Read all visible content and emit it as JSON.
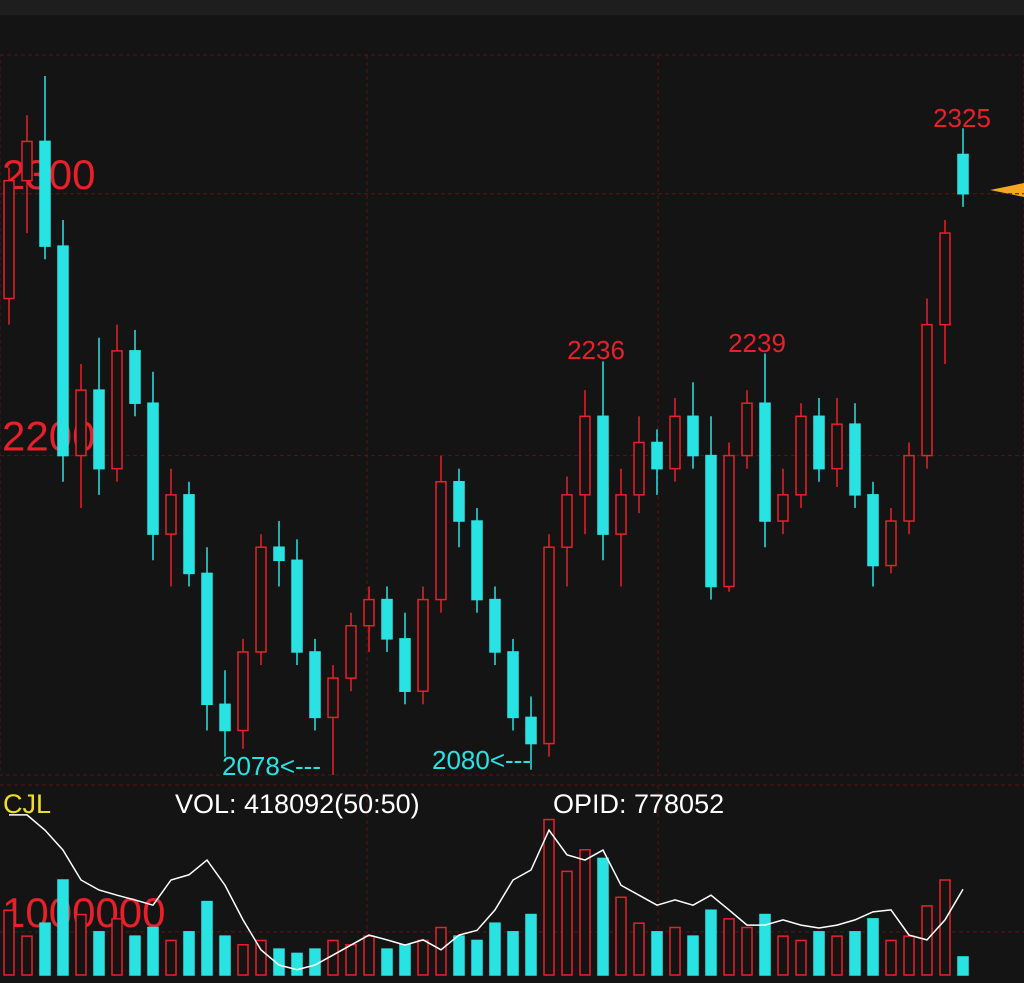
{
  "chart_data": {
    "type": "candlestick",
    "up_color": "#e8202a",
    "down_color": "#29e3e3",
    "ylim": [
      2078,
      2353
    ],
    "yticks": [
      2200,
      2300
    ],
    "grid": true,
    "open": [
      2260,
      2305,
      2320,
      2280,
      2200,
      2225,
      2195,
      2240,
      2220,
      2170,
      2185,
      2155,
      2105,
      2095,
      2125,
      2165,
      2160,
      2125,
      2100,
      2115,
      2135,
      2145,
      2130,
      2110,
      2145,
      2190,
      2175,
      2145,
      2125,
      2100,
      2090,
      2165,
      2185,
      2215,
      2170,
      2185,
      2205,
      2195,
      2215,
      2200,
      2150,
      2200,
      2220,
      2175,
      2185,
      2215,
      2195,
      2212,
      2185,
      2158,
      2175,
      2200,
      2250,
      2315
    ],
    "high": [
      2310,
      2330,
      2345,
      2290,
      2235,
      2245,
      2250,
      2248,
      2232,
      2195,
      2190,
      2165,
      2118,
      2130,
      2170,
      2175,
      2168,
      2130,
      2120,
      2140,
      2150,
      2150,
      2140,
      2150,
      2200,
      2195,
      2180,
      2150,
      2130,
      2108,
      2170,
      2192,
      2225,
      2236,
      2195,
      2215,
      2210,
      2222,
      2228,
      2215,
      2205,
      2225,
      2239,
      2195,
      2220,
      2222,
      2222,
      2220,
      2190,
      2180,
      2205,
      2260,
      2290,
      2325
    ],
    "low": [
      2250,
      2285,
      2275,
      2190,
      2180,
      2185,
      2190,
      2215,
      2160,
      2150,
      2150,
      2095,
      2085,
      2088,
      2120,
      2150,
      2120,
      2095,
      2078,
      2110,
      2125,
      2125,
      2105,
      2105,
      2140,
      2165,
      2140,
      2120,
      2095,
      2080,
      2085,
      2150,
      2170,
      2160,
      2150,
      2178,
      2185,
      2190,
      2195,
      2145,
      2148,
      2195,
      2165,
      2170,
      2180,
      2190,
      2188,
      2180,
      2150,
      2155,
      2170,
      2195,
      2235,
      2295
    ],
    "close": [
      2305,
      2320,
      2280,
      2200,
      2225,
      2195,
      2240,
      2220,
      2170,
      2185,
      2155,
      2105,
      2095,
      2125,
      2165,
      2160,
      2125,
      2100,
      2115,
      2135,
      2145,
      2130,
      2110,
      2145,
      2190,
      2175,
      2145,
      2125,
      2100,
      2090,
      2165,
      2185,
      2215,
      2170,
      2185,
      2205,
      2195,
      2215,
      2200,
      2150,
      2200,
      2220,
      2175,
      2185,
      2215,
      2195,
      2212,
      2185,
      2158,
      2175,
      2200,
      2250,
      2285,
      2300
    ],
    "annotations": [
      "2325",
      "2236",
      "2239",
      "2078<---",
      "2080<---"
    ],
    "volume": {
      "label": "CJL",
      "ylim": [
        0,
        4400000
      ],
      "yticks": [
        1000000
      ],
      "values": [
        1500000,
        900000,
        1200000,
        2200000,
        1400000,
        1000000,
        1300000,
        900000,
        1100000,
        800000,
        1000000,
        1700000,
        900000,
        700000,
        800000,
        600000,
        500000,
        600000,
        800000,
        700000,
        900000,
        600000,
        700000,
        800000,
        1100000,
        900000,
        800000,
        1200000,
        1000000,
        1400000,
        3600000,
        2400000,
        2900000,
        2700000,
        1800000,
        1200000,
        1000000,
        1100000,
        900000,
        1500000,
        1300000,
        1100000,
        1400000,
        900000,
        800000,
        1000000,
        900000,
        1000000,
        1300000,
        800000,
        900000,
        1600000,
        2200000,
        418092
      ],
      "vol_text": "VOL: 418092(50:50)",
      "opid_text": "OPID: 778052",
      "opid_color": "#ffffff",
      "y2lim": [
        760000,
        800000
      ],
      "opid": [
        793700,
        793700,
        790500,
        786300,
        780000,
        777900,
        776800,
        775800,
        774700,
        780000,
        781100,
        784200,
        778900,
        771600,
        765300,
        762100,
        761100,
        762100,
        764200,
        766300,
        768400,
        767400,
        766300,
        767400,
        765300,
        768400,
        769400,
        773700,
        780000,
        782100,
        790500,
        785300,
        784200,
        786300,
        778900,
        776800,
        774700,
        775800,
        774700,
        776800,
        773700,
        770500,
        770500,
        771600,
        770500,
        769900,
        770500,
        771600,
        773300,
        773700,
        768400,
        767400,
        771600,
        778052
      ]
    }
  }
}
